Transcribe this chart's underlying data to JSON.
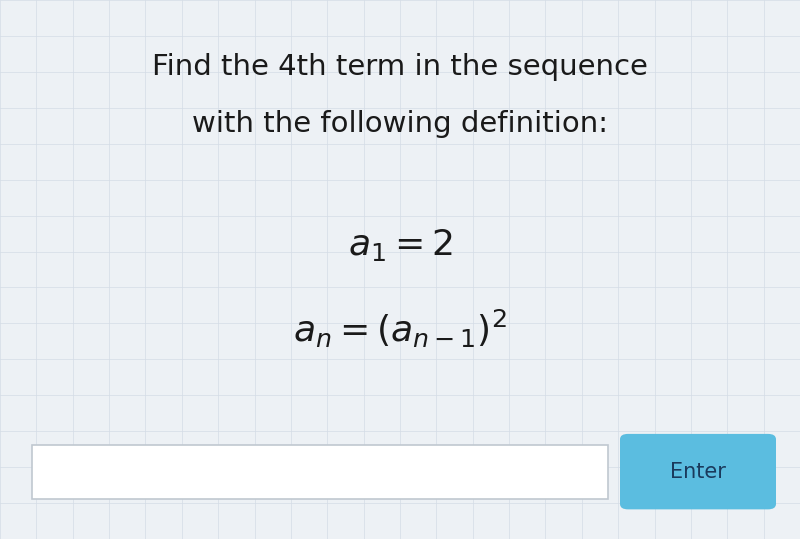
{
  "title_line1": "Find the 4th term in the sequence",
  "title_line2": "with the following definition:",
  "formula1": "$a_1 = 2$",
  "formula2": "$a_n = (a_{n-1})^2$",
  "background_color": "#edf1f5",
  "text_color": "#1a1a1a",
  "title_fontsize": 21,
  "formula_fontsize": 26,
  "input_box_color": "#ffffff",
  "button_color": "#5bbde0",
  "button_text": "Enter",
  "button_text_color": "#1a3a5c",
  "button_fontsize": 15,
  "grid_line_color": "#d4dce6",
  "n_vlines": 22,
  "n_hlines": 15
}
